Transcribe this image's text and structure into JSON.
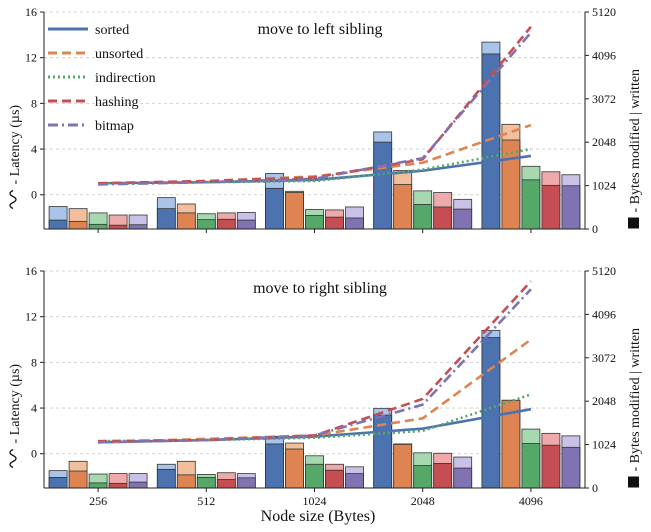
{
  "figure": {
    "xlabel": "Node size (Bytes)",
    "categories": [
      "256",
      "512",
      "1024",
      "2048",
      "4096"
    ],
    "left_axis_label": "Latency (µs)",
    "right_axis_label": "- Bytes modified | written"
  },
  "legend": {
    "items": [
      {
        "name": "sorted",
        "color": "#4c72b0",
        "dash": "solid"
      },
      {
        "name": "unsorted",
        "color": "#dd8452",
        "dash": "dashed"
      },
      {
        "name": "indirection",
        "color": "#55a868",
        "dash": "dotted"
      },
      {
        "name": "hashing",
        "color": "#c44e52",
        "dash": "dashed"
      },
      {
        "name": "bitmap",
        "color": "#8172b2",
        "dash": "dashdot"
      }
    ]
  },
  "colors": {
    "series_dark": [
      "#4c72b0",
      "#dd8452",
      "#55a868",
      "#c44e52",
      "#8172b2"
    ],
    "series_light": [
      "#a9c4e8",
      "#f2bf9c",
      "#a8d8b0",
      "#eeaaaa",
      "#c9c1e6"
    ]
  },
  "chart_data": [
    {
      "type": "bar+line",
      "title": "move to left sibling",
      "categories": [
        "256",
        "512",
        "1024",
        "2048",
        "4096"
      ],
      "xlabel": "Node size (Bytes)",
      "ylabel": "Latency (µs)",
      "ylim": [
        -3,
        16
      ],
      "yticks": [
        0,
        4,
        8,
        12,
        16
      ],
      "y2label": "Bytes modified | written",
      "y2lim": [
        0,
        5120
      ],
      "y2ticks": [
        0,
        1024,
        2048,
        3072,
        4096,
        5120
      ],
      "grid": true,
      "legend_position": "top-left",
      "series": [
        {
          "name": "sorted",
          "latency": [
            1.0,
            1.1,
            1.3,
            2.1,
            3.4
          ],
          "bytes_modified": [
            210,
            480,
            960,
            2050,
            4130
          ],
          "bytes_written": [
            530,
            740,
            1310,
            2290,
            4410
          ]
        },
        {
          "name": "unsorted",
          "latency": [
            1.0,
            1.2,
            1.6,
            2.8,
            6.1
          ],
          "bytes_modified": [
            180,
            380,
            860,
            1050,
            2100
          ],
          "bytes_written": [
            480,
            590,
            890,
            1380,
            2470
          ]
        },
        {
          "name": "indirection",
          "latency": [
            1.0,
            1.1,
            1.2,
            2.2,
            4.0
          ],
          "bytes_modified": [
            110,
            220,
            320,
            580,
            1160
          ],
          "bytes_written": [
            380,
            360,
            460,
            900,
            1480
          ]
        },
        {
          "name": "hashing",
          "latency": [
            1.0,
            1.2,
            1.5,
            3.1,
            14.7
          ],
          "bytes_modified": [
            90,
            230,
            280,
            520,
            1030
          ],
          "bytes_written": [
            330,
            380,
            450,
            860,
            1350
          ]
        },
        {
          "name": "bitmap",
          "latency": [
            0.9,
            1.1,
            1.4,
            3.2,
            14.2
          ],
          "bytes_modified": [
            100,
            210,
            260,
            470,
            1020
          ],
          "bytes_written": [
            330,
            390,
            520,
            700,
            1280
          ]
        }
      ]
    },
    {
      "type": "bar+line",
      "title": "move to right sibling",
      "categories": [
        "256",
        "512",
        "1024",
        "2048",
        "4096"
      ],
      "xlabel": "Node size (Bytes)",
      "ylabel": "Latency (µs)",
      "ylim": [
        -3,
        16
      ],
      "yticks": [
        0,
        4,
        8,
        12,
        16
      ],
      "y2label": "Bytes modified | written",
      "y2lim": [
        0,
        5120
      ],
      "y2ticks": [
        0,
        1024,
        2048,
        3072,
        4096,
        5120
      ],
      "grid": true,
      "series": [
        {
          "name": "sorted",
          "latency": [
            1.0,
            1.2,
            1.5,
            2.2,
            3.9
          ],
          "bytes_modified": [
            250,
            440,
            1040,
            1720,
            3550
          ],
          "bytes_written": [
            410,
            560,
            1220,
            1880,
            3720
          ]
        },
        {
          "name": "unsorted",
          "latency": [
            1.0,
            1.3,
            1.6,
            3.1,
            10.0
          ],
          "bytes_modified": [
            400,
            310,
            920,
            1030,
            2070
          ],
          "bytes_written": [
            630,
            630,
            1060,
            1040,
            2070
          ]
        },
        {
          "name": "indirection",
          "latency": [
            1.1,
            1.2,
            1.4,
            2.0,
            5.2
          ],
          "bytes_modified": [
            120,
            250,
            560,
            530,
            1050
          ],
          "bytes_written": [
            330,
            320,
            760,
            830,
            1390
          ]
        },
        {
          "name": "hashing",
          "latency": [
            1.1,
            1.2,
            1.6,
            4.8,
            15.1
          ],
          "bytes_modified": [
            110,
            200,
            420,
            580,
            1010
          ],
          "bytes_written": [
            340,
            360,
            560,
            820,
            1290
          ]
        },
        {
          "name": "bitmap",
          "latency": [
            1.0,
            1.2,
            1.6,
            4.3,
            14.4
          ],
          "bytes_modified": [
            140,
            240,
            340,
            470,
            960
          ],
          "bytes_written": [
            340,
            340,
            500,
            730,
            1230
          ]
        }
      ]
    }
  ]
}
